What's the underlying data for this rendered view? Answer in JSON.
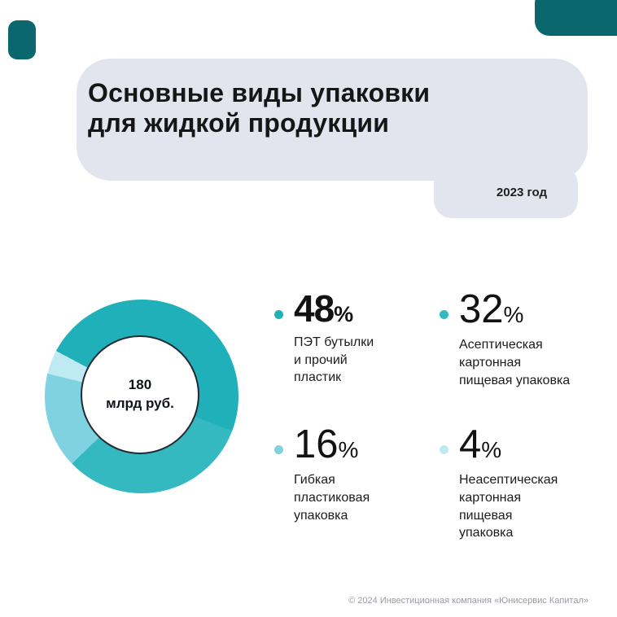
{
  "page": {
    "title_line1": "Основные виды упаковки",
    "title_line2": "для жидкой продукции",
    "year_badge": "2023 год",
    "footer": "© 2024 Инвестиционная компания «Юнисервис Капитал»"
  },
  "colors": {
    "accent_dark": "#0A676D",
    "card_bg": "#E3E5EE"
  },
  "chart_data": {
    "type": "pie",
    "donut": true,
    "title": "Основные виды упаковки для жидкой продукции",
    "year": "2023 год",
    "center_label_line1": "180",
    "center_label_line2": "млрд руб.",
    "total_label": "180 млрд руб.",
    "legend_position": "right",
    "donut_start_angle_deg": 298,
    "units": "%",
    "segments": [
      {
        "label": "ПЭТ бутылки\nи прочий\nпластик",
        "value": 48,
        "unit": "%",
        "color": "#1FB0BA"
      },
      {
        "label": "Асептическая\nкартонная\nпищевая упаковка",
        "value": 32,
        "unit": "%",
        "color": "#35B9C1"
      },
      {
        "label": "Гибкая\nпластиковая\nупаковка",
        "value": 16,
        "unit": "%",
        "color": "#7FD2DF"
      },
      {
        "label": "Неасептическая\nкартонная\nпищевая\nупаковка",
        "value": 4,
        "unit": "%",
        "color": "#BFEAF2"
      }
    ]
  }
}
